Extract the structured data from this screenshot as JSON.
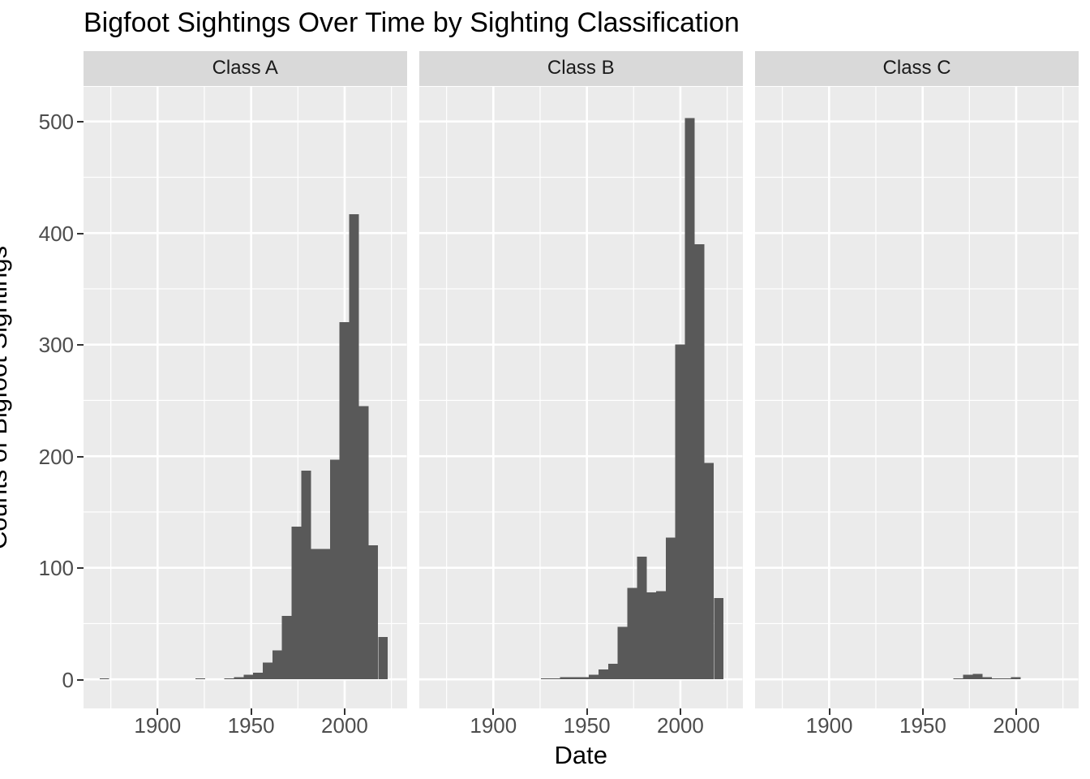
{
  "title": "Bigfoot Sightings Over Time by Sighting Classification",
  "x_axis": {
    "title": "Date",
    "tick_labels": [
      "1900",
      "1950",
      "2000"
    ],
    "tick_years": [
      1900,
      1950,
      2000
    ],
    "minor_years": [
      1875,
      1925,
      1975,
      2025
    ]
  },
  "y_axis": {
    "title": "Counts of Bigfoot Sightings",
    "tick_labels": [
      "0",
      "100",
      "200",
      "300",
      "400",
      "500"
    ],
    "tick_values": [
      0,
      100,
      200,
      300,
      400,
      500
    ],
    "minor_values": [
      50,
      150,
      250,
      350,
      450
    ]
  },
  "colors": {
    "bar": "#595959",
    "panel_background": "#ebebeb",
    "strip_background": "#d9d9d9",
    "gridline": "#ffffff",
    "tick_mark": "#333333",
    "tick_label": "#4d4d4d",
    "strip_text": "#1a1a1a",
    "title_text": "#000000"
  },
  "chart_data": {
    "type": "bar",
    "subtype": "faceted-histogram",
    "facet_by": "sighting classification",
    "bin_width_years": 5.13,
    "x_domain": [
      1860.4,
      2033.6
    ],
    "y_domain": [
      0,
      531
    ],
    "grid": "on",
    "facets": [
      {
        "label": "Class A",
        "bins": [
          {
            "start": 1869.0,
            "count": 1
          },
          {
            "start": 1920.3,
            "count": 1
          },
          {
            "start": 1935.7,
            "count": 1
          },
          {
            "start": 1940.9,
            "count": 2
          },
          {
            "start": 1946.0,
            "count": 4
          },
          {
            "start": 1951.1,
            "count": 6
          },
          {
            "start": 1956.3,
            "count": 15
          },
          {
            "start": 1961.4,
            "count": 26
          },
          {
            "start": 1966.5,
            "count": 57
          },
          {
            "start": 1971.7,
            "count": 137
          },
          {
            "start": 1976.8,
            "count": 187
          },
          {
            "start": 1981.9,
            "count": 117
          },
          {
            "start": 1987.1,
            "count": 117
          },
          {
            "start": 1992.2,
            "count": 197
          },
          {
            "start": 1997.3,
            "count": 320
          },
          {
            "start": 2002.5,
            "count": 417
          },
          {
            "start": 2007.6,
            "count": 245
          },
          {
            "start": 2012.7,
            "count": 120
          },
          {
            "start": 2017.9,
            "count": 38
          }
        ]
      },
      {
        "label": "Class B",
        "bins": [
          {
            "start": 1925.5,
            "count": 1
          },
          {
            "start": 1930.6,
            "count": 1
          },
          {
            "start": 1935.7,
            "count": 2
          },
          {
            "start": 1940.9,
            "count": 2
          },
          {
            "start": 1946.0,
            "count": 2
          },
          {
            "start": 1951.1,
            "count": 4
          },
          {
            "start": 1956.3,
            "count": 9
          },
          {
            "start": 1961.4,
            "count": 14
          },
          {
            "start": 1966.5,
            "count": 47
          },
          {
            "start": 1971.7,
            "count": 82
          },
          {
            "start": 1976.8,
            "count": 110
          },
          {
            "start": 1981.9,
            "count": 78
          },
          {
            "start": 1987.1,
            "count": 79
          },
          {
            "start": 1992.2,
            "count": 127
          },
          {
            "start": 1997.3,
            "count": 300
          },
          {
            "start": 2002.5,
            "count": 503
          },
          {
            "start": 2007.6,
            "count": 390
          },
          {
            "start": 2012.7,
            "count": 194
          },
          {
            "start": 2017.9,
            "count": 73
          }
        ]
      },
      {
        "label": "Class C",
        "bins": [
          {
            "start": 1966.5,
            "count": 1
          },
          {
            "start": 1971.7,
            "count": 4
          },
          {
            "start": 1976.8,
            "count": 5
          },
          {
            "start": 1981.9,
            "count": 2
          },
          {
            "start": 1987.1,
            "count": 1
          },
          {
            "start": 1992.2,
            "count": 1
          },
          {
            "start": 1997.3,
            "count": 2
          }
        ]
      }
    ]
  }
}
